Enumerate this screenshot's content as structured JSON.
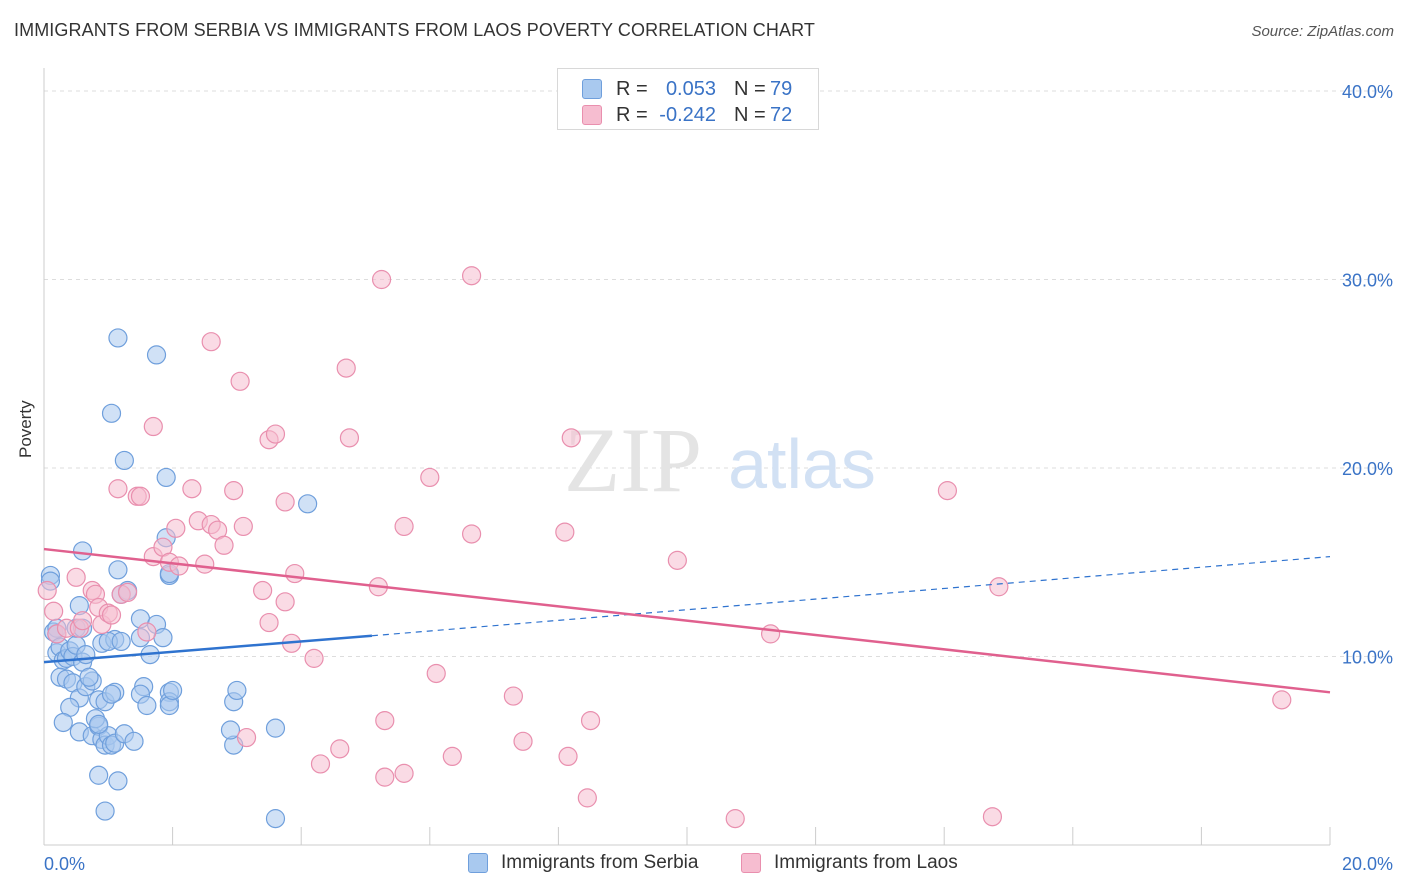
{
  "title": "IMMIGRANTS FROM SERBIA VS IMMIGRANTS FROM LAOS POVERTY CORRELATION CHART",
  "source": "Source: ZipAtlas.com",
  "watermark": {
    "zip": "ZIP",
    "atlas": "atlas"
  },
  "colors": {
    "serbia_fill": "#a9c9ef",
    "serbia_stroke": "#6f9fdc",
    "serbia_line": "#2f73cf",
    "laos_fill": "#f6bdd0",
    "laos_stroke": "#e98fae",
    "laos_line": "#e0608e",
    "axis_text": "#3a73c6",
    "grid": "#dddddd"
  },
  "legend_top": [
    {
      "series": "Immigrants from Serbia",
      "r_label": "R =",
      "r_value": "0.053",
      "n_label": "N =",
      "n_value": "79"
    },
    {
      "series": "Immigrants from Laos",
      "r_label": "R =",
      "r_value": "-0.242",
      "n_label": "N =",
      "n_value": "72"
    }
  ],
  "legend_bottom": [
    "Immigrants from Serbia",
    "Immigrants from Laos"
  ],
  "chart_data": {
    "type": "scatter",
    "title": "IMMIGRANTS FROM SERBIA VS IMMIGRANTS FROM LAOS POVERTY CORRELATION CHART",
    "xlabel": "",
    "ylabel": "Poverty",
    "xlim": [
      0,
      20
    ],
    "ylim": [
      0,
      40
    ],
    "x_tick_labels": [
      "0.0%",
      "20.0%"
    ],
    "y_ticks": [
      10,
      20,
      30,
      40
    ],
    "y_tick_labels": [
      "10.0%",
      "20.0%",
      "30.0%",
      "40.0%"
    ],
    "grid": true,
    "series": [
      {
        "name": "Immigrants from Serbia",
        "R": 0.053,
        "N": 79,
        "trend": {
          "x0": 0,
          "y0": 9.7,
          "x1": 5.1,
          "y1": 11.1,
          "x_dash_end": 20,
          "y_dash_end": 15.3
        },
        "points": [
          [
            0.1,
            14.3
          ],
          [
            0.1,
            14.0
          ],
          [
            0.15,
            11.3
          ],
          [
            0.2,
            11.5
          ],
          [
            0.2,
            11.2
          ],
          [
            0.2,
            10.2
          ],
          [
            0.25,
            10.5
          ],
          [
            0.3,
            9.8
          ],
          [
            0.35,
            9.9
          ],
          [
            0.4,
            10.3
          ],
          [
            0.45,
            10.0
          ],
          [
            0.5,
            10.6
          ],
          [
            0.5,
            11.5
          ],
          [
            0.55,
            12.7
          ],
          [
            0.6,
            9.7
          ],
          [
            0.6,
            11.5
          ],
          [
            0.65,
            10.1
          ],
          [
            0.25,
            8.9
          ],
          [
            0.35,
            8.8
          ],
          [
            0.45,
            8.6
          ],
          [
            0.55,
            7.8
          ],
          [
            0.65,
            8.4
          ],
          [
            0.75,
            8.7
          ],
          [
            0.7,
            8.9
          ],
          [
            0.85,
            7.7
          ],
          [
            0.95,
            7.6
          ],
          [
            1.1,
            8.1
          ],
          [
            1.05,
            8.0
          ],
          [
            0.4,
            7.3
          ],
          [
            0.3,
            6.5
          ],
          [
            0.55,
            6.0
          ],
          [
            0.75,
            5.8
          ],
          [
            0.85,
            6.3
          ],
          [
            0.8,
            6.7
          ],
          [
            0.9,
            5.6
          ],
          [
            0.95,
            5.3
          ],
          [
            1.0,
            5.8
          ],
          [
            1.05,
            5.3
          ],
          [
            1.1,
            5.4
          ],
          [
            0.85,
            6.4
          ],
          [
            0.9,
            10.7
          ],
          [
            1.1,
            10.9
          ],
          [
            1.0,
            10.8
          ],
          [
            1.2,
            10.8
          ],
          [
            0.6,
            15.6
          ],
          [
            1.15,
            14.6
          ],
          [
            1.3,
            13.5
          ],
          [
            1.2,
            13.3
          ],
          [
            1.5,
            11.0
          ],
          [
            1.5,
            12.0
          ],
          [
            1.65,
            10.1
          ],
          [
            1.75,
            11.7
          ],
          [
            1.85,
            11.0
          ],
          [
            1.95,
            14.3
          ],
          [
            1.95,
            8.1
          ],
          [
            1.55,
            8.4
          ],
          [
            1.5,
            8.0
          ],
          [
            1.95,
            7.6
          ],
          [
            1.25,
            5.9
          ],
          [
            1.4,
            5.5
          ],
          [
            1.95,
            7.4
          ],
          [
            2.0,
            8.2
          ],
          [
            3.6,
            6.2
          ],
          [
            1.6,
            7.4
          ],
          [
            2.95,
            5.3
          ],
          [
            2.9,
            6.1
          ],
          [
            2.95,
            7.6
          ],
          [
            3.0,
            8.2
          ],
          [
            1.15,
            3.4
          ],
          [
            0.85,
            3.7
          ],
          [
            0.95,
            1.8
          ],
          [
            3.6,
            1.4
          ],
          [
            1.15,
            26.9
          ],
          [
            1.75,
            26.0
          ],
          [
            1.05,
            22.9
          ],
          [
            1.25,
            20.4
          ],
          [
            1.9,
            19.5
          ],
          [
            4.1,
            18.1
          ],
          [
            1.9,
            16.3
          ],
          [
            1.95,
            14.4
          ]
        ]
      },
      {
        "name": "Immigrants from Laos",
        "R": -0.242,
        "N": 72,
        "trend": {
          "x0": 0,
          "y0": 15.7,
          "x1": 20,
          "y1": 8.1
        },
        "points": [
          [
            0.05,
            13.5
          ],
          [
            0.15,
            12.4
          ],
          [
            0.2,
            11.2
          ],
          [
            0.35,
            11.5
          ],
          [
            0.5,
            14.2
          ],
          [
            0.55,
            11.5
          ],
          [
            0.6,
            11.9
          ],
          [
            0.75,
            13.5
          ],
          [
            0.8,
            13.3
          ],
          [
            0.85,
            12.6
          ],
          [
            0.9,
            11.7
          ],
          [
            1.0,
            12.3
          ],
          [
            1.05,
            12.2
          ],
          [
            1.2,
            13.3
          ],
          [
            1.3,
            13.4
          ],
          [
            1.6,
            11.3
          ],
          [
            1.7,
            15.3
          ],
          [
            1.85,
            15.8
          ],
          [
            1.95,
            15.0
          ],
          [
            2.05,
            16.8
          ],
          [
            2.1,
            14.8
          ],
          [
            2.4,
            17.2
          ],
          [
            2.5,
            14.9
          ],
          [
            2.6,
            17.0
          ],
          [
            2.7,
            16.7
          ],
          [
            2.8,
            15.9
          ],
          [
            3.1,
            16.9
          ],
          [
            3.4,
            13.5
          ],
          [
            3.75,
            12.9
          ],
          [
            3.5,
            11.8
          ],
          [
            3.9,
            14.4
          ],
          [
            3.85,
            10.7
          ],
          [
            4.2,
            9.9
          ],
          [
            5.2,
            13.7
          ],
          [
            1.15,
            18.9
          ],
          [
            1.45,
            18.5
          ],
          [
            1.5,
            18.5
          ],
          [
            2.3,
            18.9
          ],
          [
            2.95,
            18.8
          ],
          [
            3.75,
            18.2
          ],
          [
            1.7,
            22.2
          ],
          [
            2.6,
            26.7
          ],
          [
            3.05,
            24.6
          ],
          [
            3.5,
            21.5
          ],
          [
            3.6,
            21.8
          ],
          [
            4.7,
            25.3
          ],
          [
            4.75,
            21.6
          ],
          [
            5.25,
            30.0
          ],
          [
            6.65,
            30.2
          ],
          [
            6.0,
            19.5
          ],
          [
            5.6,
            16.9
          ],
          [
            6.65,
            16.5
          ],
          [
            8.2,
            21.6
          ],
          [
            8.1,
            16.6
          ],
          [
            9.85,
            15.1
          ],
          [
            6.1,
            9.1
          ],
          [
            5.3,
            6.6
          ],
          [
            5.3,
            3.6
          ],
          [
            5.6,
            3.8
          ],
          [
            4.6,
            5.1
          ],
          [
            4.3,
            4.3
          ],
          [
            3.15,
            5.7
          ],
          [
            6.35,
            4.7
          ],
          [
            7.3,
            7.9
          ],
          [
            7.45,
            5.5
          ],
          [
            8.15,
            4.7
          ],
          [
            8.5,
            6.6
          ],
          [
            8.45,
            2.5
          ],
          [
            10.75,
            1.4
          ],
          [
            11.3,
            11.2
          ],
          [
            14.05,
            18.8
          ],
          [
            14.85,
            13.7
          ]
        ]
      }
    ],
    "extra_points_laos": [
      [
        19.25,
        7.7
      ],
      [
        14.75,
        1.5
      ]
    ]
  }
}
